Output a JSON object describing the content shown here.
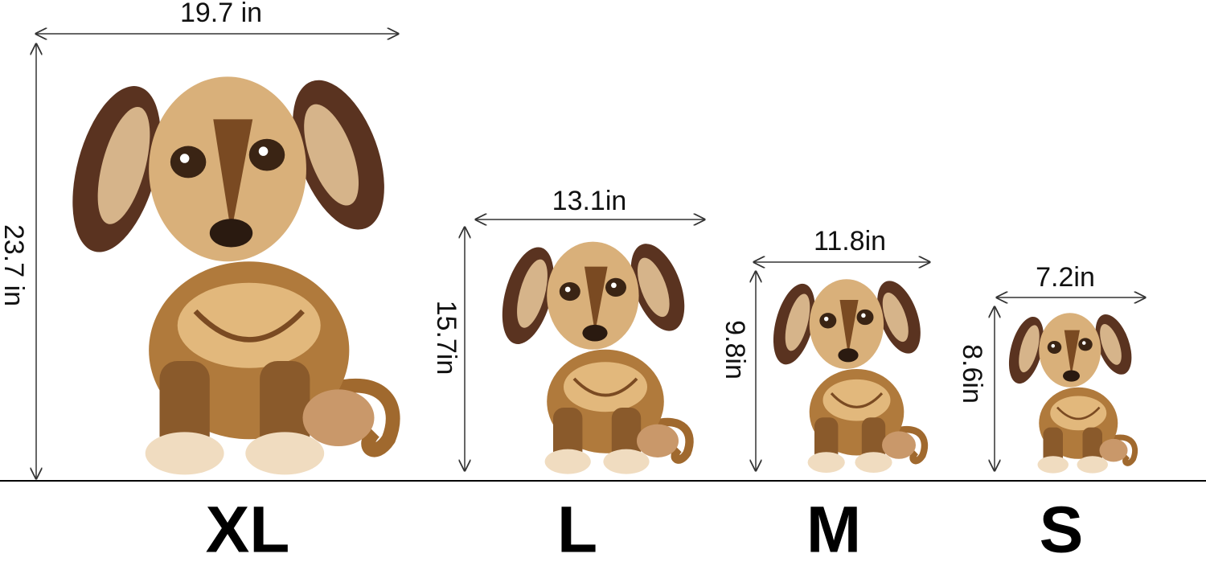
{
  "sizes": [
    {
      "label": "XL",
      "width": "19.7 in",
      "height": "23.7 in"
    },
    {
      "label": "L",
      "width": "13.1in",
      "height": "15.7in"
    },
    {
      "label": "M",
      "width": "11.8in",
      "height": "9.8in"
    },
    {
      "label": "S",
      "width": "7.2in",
      "height": "8.6in"
    }
  ]
}
